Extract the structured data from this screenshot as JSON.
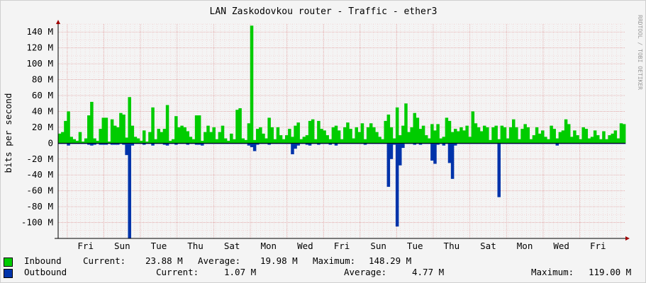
{
  "chart_data": {
    "type": "area",
    "title": "LAN Zaskodovkou router - Traffic - ether3",
    "ylabel": "bits per second",
    "watermark": "RRDTOOL / TOBI OETIKER",
    "ylim": [
      -120,
      150
    ],
    "y_ticks": [
      -100,
      -80,
      -60,
      -40,
      -20,
      0,
      20,
      40,
      60,
      80,
      100,
      120,
      140
    ],
    "y_tick_labels": [
      "-100 M",
      "-80 M",
      "-60 M",
      "-40 M",
      "-20 M",
      "0",
      "20 M",
      "40 M",
      "60 M",
      "80 M",
      "100 M",
      "120 M",
      "140 M"
    ],
    "x_tick_labels": [
      "Fri",
      "Sun",
      "Tue",
      "Thu",
      "Sat",
      "Mon",
      "Wed",
      "Fri",
      "Sun",
      "Tue",
      "Thu",
      "Sat",
      "Mon",
      "Wed",
      "Fri"
    ],
    "colors": {
      "inbound": "#00cc00",
      "outbound": "#0033aa",
      "grid": "#e0a0a0",
      "axis": "#a00000"
    },
    "series": [
      {
        "name": "Inbound",
        "values": [
          12,
          14,
          28,
          40,
          8,
          5,
          3,
          14,
          2,
          6,
          35,
          52,
          6,
          3,
          18,
          32,
          32,
          2,
          30,
          22,
          20,
          38,
          36,
          7,
          58,
          22,
          8,
          6,
          3,
          16,
          2,
          14,
          45,
          5,
          18,
          14,
          18,
          48,
          3,
          5,
          34,
          20,
          22,
          20,
          15,
          8,
          5,
          35,
          35,
          3,
          14,
          22,
          14,
          20,
          5,
          14,
          22,
          6,
          3,
          12,
          5,
          42,
          44,
          6,
          4,
          25,
          148,
          4,
          18,
          20,
          12,
          6,
          32,
          20,
          5,
          20,
          10,
          5,
          10,
          18,
          8,
          22,
          26,
          5,
          8,
          10,
          28,
          30,
          5,
          28,
          18,
          16,
          10,
          5,
          20,
          22,
          16,
          5,
          20,
          26,
          18,
          6,
          20,
          14,
          25,
          5,
          20,
          25,
          20,
          14,
          8,
          5,
          28,
          36,
          20,
          6,
          45,
          10,
          22,
          50,
          14,
          20,
          38,
          32,
          18,
          22,
          10,
          6,
          24,
          16,
          24,
          6,
          8,
          32,
          28,
          14,
          18,
          15,
          20,
          16,
          22,
          8,
          40,
          25,
          20,
          15,
          22,
          20,
          4,
          20,
          22,
          5,
          22,
          20,
          6,
          20,
          30,
          20,
          5,
          18,
          24,
          20,
          5,
          10,
          20,
          12,
          16,
          8,
          5,
          22,
          18,
          6,
          14,
          16,
          30,
          24,
          8,
          16,
          10,
          5,
          20,
          18,
          6,
          8,
          16,
          10,
          5,
          15,
          5,
          10,
          12,
          16,
          6,
          25,
          24
        ]
      },
      {
        "name": "Outbound",
        "values": [
          -1,
          -1,
          -1,
          -3,
          -1,
          -1,
          -1,
          -1,
          -1,
          -1,
          -2,
          -3,
          -2,
          -1,
          -2,
          -2,
          -2,
          -1,
          -2,
          -2,
          -2,
          -1,
          -2,
          -15,
          -120,
          -3,
          -1,
          -1,
          -1,
          -2,
          -1,
          -1,
          -3,
          -1,
          -1,
          -1,
          -2,
          -3,
          -1,
          -1,
          -2,
          -1,
          -1,
          -1,
          -2,
          -1,
          -1,
          -2,
          -2,
          -3,
          -1,
          -1,
          -1,
          -1,
          -1,
          -1,
          -1,
          -1,
          -1,
          -1,
          -1,
          -1,
          -1,
          -1,
          -1,
          -3,
          -5,
          -10,
          -2,
          -1,
          -1,
          -1,
          -2,
          -1,
          -1,
          -1,
          -1,
          -1,
          -1,
          -1,
          -14,
          -7,
          -3,
          -1,
          -1,
          -2,
          -3,
          -1,
          -1,
          -2,
          -1,
          -1,
          -1,
          -2,
          -1,
          -3,
          -1,
          -1,
          -1,
          -1,
          -1,
          -1,
          -1,
          -1,
          -1,
          -2,
          -1,
          -1,
          -1,
          -1,
          -1,
          -1,
          -1,
          -55,
          -20,
          -2,
          -105,
          -28,
          -6,
          -1,
          -1,
          -1,
          -2,
          -1,
          -2,
          -1,
          -1,
          -1,
          -22,
          -26,
          -2,
          -1,
          -3,
          -1,
          -25,
          -45,
          -3,
          -1,
          -1,
          -1,
          -1,
          -1,
          -1,
          -1,
          -1,
          -1,
          -1,
          -1,
          -1,
          -1,
          -1,
          -68,
          -1,
          -1,
          -1,
          -1,
          -1,
          -1,
          -1,
          -1,
          -1,
          -1,
          -1,
          -1,
          -1,
          -1,
          -1,
          -1,
          -1,
          -1,
          -1,
          -3,
          -1,
          -1,
          -1,
          -1,
          -1,
          -1,
          -1,
          -1,
          -1,
          -1,
          -1,
          -1,
          -1,
          -1,
          -1,
          -1,
          -1,
          -1,
          -1,
          -1,
          -1,
          -1,
          -1,
          -1,
          -1,
          -1,
          -1,
          -1
        ]
      }
    ],
    "legend": [
      {
        "name": "Inbound",
        "current": "23.88 M",
        "average": "19.98 M",
        "maximum": "148.29 M"
      },
      {
        "name": "Outbound",
        "current": "1.07 M",
        "average": "4.77 M",
        "maximum": "119.00 M"
      }
    ],
    "legend_labels": {
      "current": "Current:",
      "average": "Average:",
      "maximum": "Maximum:"
    }
  }
}
